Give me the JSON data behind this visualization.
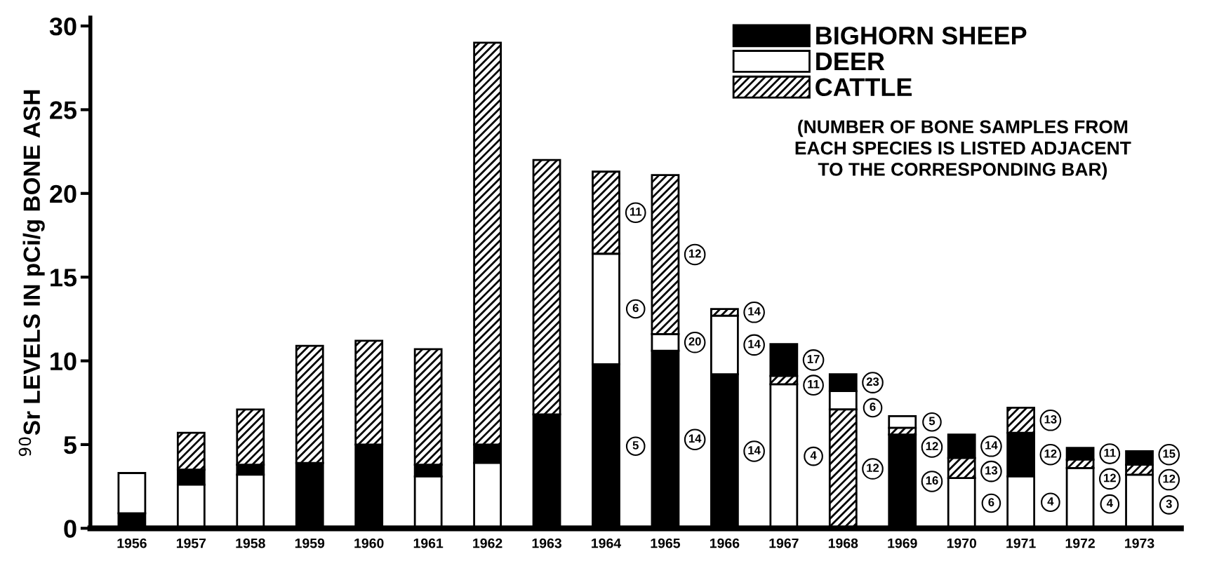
{
  "chart_data": {
    "type": "bar",
    "ylabel": "$^{90}$Sr LEVELS IN pCi/g BONE ASH",
    "categories": [
      "1956",
      "1957",
      "1958",
      "1959",
      "1960",
      "1961",
      "1962",
      "1963",
      "1964",
      "1965",
      "1966",
      "1967",
      "1968",
      "1969",
      "1970",
      "1971",
      "1972",
      "1973"
    ],
    "series": [
      {
        "name": "BIGHORN SHEEP",
        "color": "#000000",
        "base": [
          0,
          2.6,
          3.2,
          0,
          0,
          3.1,
          3.9,
          0,
          0,
          0,
          0,
          9.1,
          8.2,
          0,
          4.2,
          3.1,
          4.1,
          3.8
        ],
        "values": [
          0.9,
          0.9,
          0.6,
          3.9,
          5.0,
          0.7,
          1.1,
          6.8,
          9.8,
          10.6,
          9.2,
          1.9,
          1.0,
          5.6,
          1.4,
          2.6,
          0.7,
          0.8
        ]
      },
      {
        "name": "DEER",
        "color": "#ffffff",
        "base": [
          0.9,
          0,
          0,
          null,
          null,
          0,
          0,
          null,
          9.8,
          10.6,
          9.2,
          0,
          7.1,
          6.0,
          0,
          0,
          0,
          0
        ],
        "values": [
          2.4,
          2.6,
          3.2,
          null,
          null,
          3.1,
          3.9,
          null,
          6.6,
          1.0,
          3.5,
          8.6,
          1.1,
          0.7,
          3.0,
          3.1,
          3.6,
          3.2
        ]
      },
      {
        "name": "CATTLE",
        "color": "#000000",
        "base": [
          null,
          3.5,
          3.8,
          3.9,
          5.0,
          3.8,
          5.0,
          6.8,
          16.4,
          11.6,
          12.7,
          8.6,
          0,
          5.6,
          3.0,
          5.7,
          3.6,
          3.2
        ],
        "values": [
          null,
          2.2,
          3.3,
          7.0,
          6.2,
          6.9,
          24.0,
          15.2,
          4.9,
          9.5,
          0.4,
          0.5,
          7.1,
          0.4,
          1.2,
          1.5,
          0.5,
          0.6
        ]
      }
    ],
    "ylim": [
      0,
      30.5
    ],
    "yticks": [
      0,
      5,
      10,
      15,
      20,
      25,
      30
    ],
    "grid": false,
    "legend": "top right",
    "annotations": [
      "(NUMBER OF BONE SAMPLES FROM\nEACH SPECIES IS LISTED ADJACENT\nTO THE CORRESPONDING BAR)",
      "11",
      "6",
      "5",
      "12",
      "20",
      "14",
      "14",
      "14",
      "14",
      "17",
      "11",
      "4",
      "23",
      "6",
      "12",
      "5",
      "12",
      "16",
      "14",
      "13",
      "6",
      "13",
      "12",
      "4",
      "11",
      "12",
      "4",
      "15",
      "12",
      "3"
    ]
  }
}
